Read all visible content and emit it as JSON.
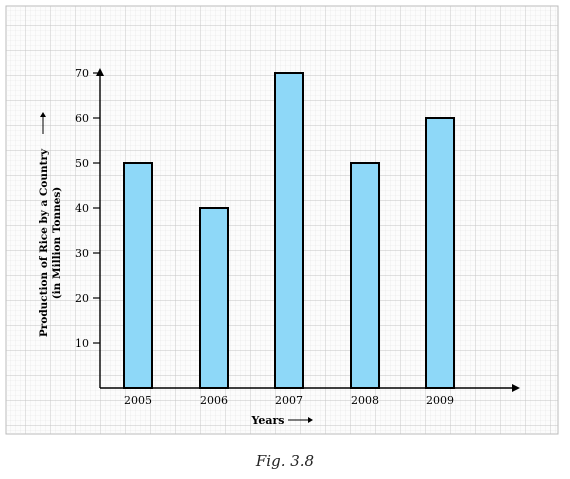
{
  "caption": "Fig. 3.8",
  "colors": {
    "bar_fill": "#8ed8f8",
    "bar_stroke": "#000000",
    "grid_bg": "#fbfbfb",
    "grid_minor": "#e6e6e6",
    "grid_major": "#c8c8c8",
    "axis": "#000000"
  },
  "chart_data": {
    "type": "bar",
    "categories": [
      "2005",
      "2006",
      "2007",
      "2008",
      "2009"
    ],
    "values": [
      50,
      40,
      70,
      50,
      60
    ],
    "title": "",
    "xlabel": "Years",
    "ylabel": "Production of Rice by a Country",
    "ylabel_unit": "(in Million Tonnes)",
    "yticks": [
      10,
      20,
      30,
      40,
      50,
      60,
      70
    ],
    "ylim": [
      0,
      80
    ],
    "grid": true,
    "legend": "none"
  }
}
